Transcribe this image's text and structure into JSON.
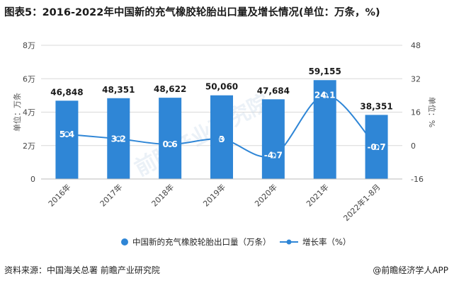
{
  "title": "图表5：2016-2022年中国新的充气橡胶轮胎出口量及增长情况(单位：万条，%)",
  "footer": {
    "source": "资料来源：中国海关总署 前瞻产业研究院",
    "brand": "@前瞻经济学人APP"
  },
  "chart_data": {
    "type": "bar+line",
    "categories": [
      "2016年",
      "2017年",
      "2018年",
      "2019年",
      "2020年",
      "2021年",
      "2022年1-8月"
    ],
    "series": [
      {
        "name": "中国新的充气橡胶轮胎出口量（万条）",
        "type": "bar",
        "axis": "left",
        "values": [
          46848,
          48351,
          48622,
          50060,
          47684,
          59155,
          38351
        ],
        "labels": [
          "46,848",
          "48,351",
          "48,622",
          "50,060",
          "47,684",
          "59,155",
          "38,351"
        ],
        "color": "#2f86d6"
      },
      {
        "name": "增长率（%）",
        "type": "line",
        "axis": "right",
        "values": [
          5.4,
          3.2,
          0.6,
          3,
          -4.7,
          24.1,
          -0.7
        ],
        "labels": [
          "5.4",
          "3.2",
          "0.6",
          "3",
          "-4.7",
          "24.1",
          "-0.7"
        ],
        "color": "#2f86d6"
      }
    ],
    "left_axis": {
      "label": "单位：万条",
      "ylim": [
        0,
        80000
      ],
      "ticks": [
        0,
        20000,
        40000,
        60000,
        80000
      ],
      "tick_labels": [
        "0",
        "2万",
        "4万",
        "6万",
        "8万"
      ]
    },
    "right_axis": {
      "label": "单位：%",
      "ylim": [
        -16,
        48
      ],
      "ticks": [
        -16,
        0,
        16,
        32,
        48
      ],
      "tick_labels": [
        "-16",
        "0",
        "16",
        "32",
        "48"
      ]
    },
    "legend": [
      "中国新的充气橡胶轮胎出口量（万条）",
      "增长率（%）"
    ],
    "legend_position": "bottom",
    "watermark": "前瞻产业研究院"
  }
}
